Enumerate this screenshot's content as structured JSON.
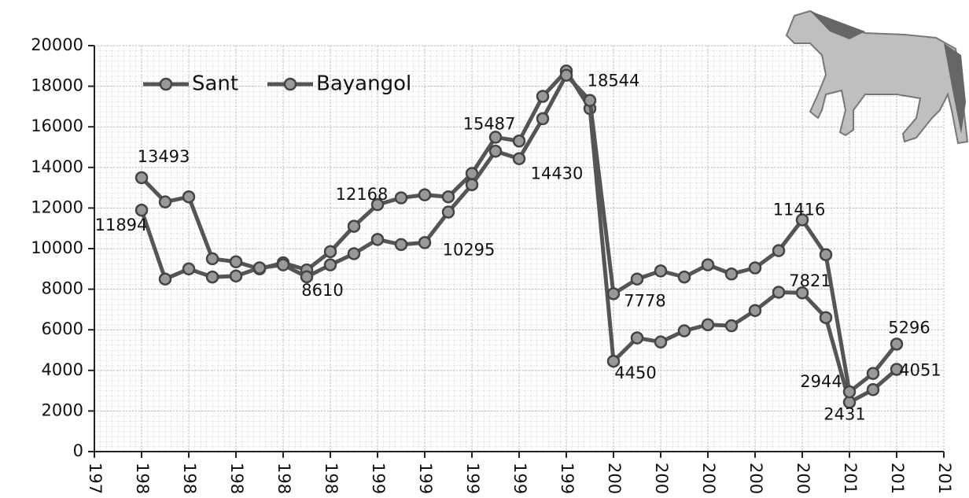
{
  "chart_data": {
    "type": "line",
    "x": [
      1980,
      1981,
      1982,
      1983,
      1984,
      1985,
      1986,
      1987,
      1988,
      1989,
      1990,
      1991,
      1992,
      1993,
      1994,
      1995,
      1996,
      1997,
      1998,
      1999,
      2000,
      2001,
      2002,
      2003,
      2004,
      2005,
      2006,
      2007,
      2008,
      2009,
      2010,
      2011,
      2012
    ],
    "series": [
      {
        "name": "Sant",
        "color": "#999999",
        "values": [
          13493,
          12300,
          12550,
          9500,
          9350,
          9000,
          9300,
          8950,
          9850,
          11100,
          12168,
          12500,
          12650,
          12550,
          13700,
          15487,
          15300,
          17500,
          18750,
          16900,
          4450,
          5600,
          5400,
          5950,
          6250,
          6200,
          6950,
          7850,
          7821,
          6600,
          2431,
          3050,
          4051
        ],
        "value_labels": [
          "13493",
          null,
          null,
          null,
          null,
          null,
          null,
          null,
          null,
          null,
          "12168",
          null,
          null,
          null,
          null,
          "15487",
          null,
          null,
          null,
          null,
          "4450",
          null,
          null,
          null,
          null,
          null,
          null,
          null,
          "7821",
          null,
          "2431",
          null,
          "4051"
        ]
      },
      {
        "name": "Bayangol",
        "color": "#999999",
        "values": [
          11894,
          8500,
          9000,
          8600,
          8650,
          9050,
          9200,
          8610,
          9200,
          9750,
          10450,
          10200,
          10295,
          11800,
          13150,
          14800,
          14430,
          16400,
          18544,
          17300,
          7778,
          8500,
          8900,
          8600,
          9200,
          8750,
          9050,
          9900,
          11416,
          9700,
          2944,
          3850,
          5296
        ],
        "value_labels": [
          "11894",
          null,
          null,
          null,
          null,
          null,
          null,
          "8610",
          null,
          null,
          null,
          null,
          "10295",
          null,
          null,
          null,
          "14430",
          null,
          "18544",
          null,
          "7778",
          null,
          null,
          null,
          null,
          null,
          null,
          null,
          "11416",
          null,
          "2944",
          null,
          "5296"
        ]
      }
    ],
    "xlim": [
      1978,
      2014
    ],
    "xticks": [
      {
        "value": 1978,
        "label": "197"
      },
      {
        "value": 1980,
        "label": "198"
      },
      {
        "value": 1982,
        "label": "198"
      },
      {
        "value": 1984,
        "label": "198"
      },
      {
        "value": 1986,
        "label": "198"
      },
      {
        "value": 1988,
        "label": "198"
      },
      {
        "value": 1990,
        "label": "199"
      },
      {
        "value": 1992,
        "label": "199"
      },
      {
        "value": 1994,
        "label": "199"
      },
      {
        "value": 1996,
        "label": "199"
      },
      {
        "value": 1998,
        "label": "199"
      },
      {
        "value": 2000,
        "label": "200"
      },
      {
        "value": 2002,
        "label": "200"
      },
      {
        "value": 2004,
        "label": "200"
      },
      {
        "value": 2006,
        "label": "200"
      },
      {
        "value": 2008,
        "label": "200"
      },
      {
        "value": 2010,
        "label": "201"
      },
      {
        "value": 2012,
        "label": "201"
      },
      {
        "value": 2014,
        "label": "201"
      }
    ],
    "ylim": [
      0,
      20000
    ],
    "yticks": [
      0,
      2000,
      4000,
      6000,
      8000,
      10000,
      12000,
      14000,
      16000,
      18000,
      20000
    ],
    "grid": true,
    "legend": "top-left"
  }
}
